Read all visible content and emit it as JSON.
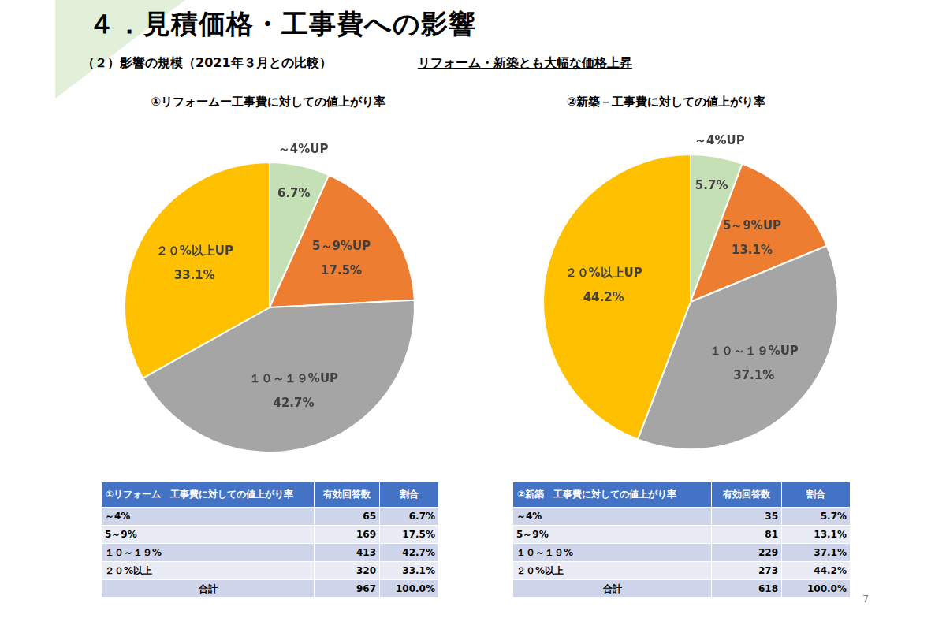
{
  "header": {
    "title": "４．見積価格・工事費への影響",
    "subtitle": "（２）影響の規模（2021年３月との比較）",
    "headline": "リフォーム・新築とも大幅な価格上昇"
  },
  "chart_data": [
    {
      "type": "pie",
      "title": "①リフォームー工事費に対しての値上がり率",
      "categories": [
        "～4%UP",
        "5～9%UP",
        "１０～１９%UP",
        "２０%以上UP"
      ],
      "values": [
        6.7,
        17.5,
        42.7,
        33.1
      ],
      "value_labels": [
        "6.7%",
        "17.5%",
        "42.7%",
        "33.1%"
      ],
      "colors": [
        "#C5E0B4",
        "#ED7D31",
        "#A5A5A5",
        "#FFC000"
      ],
      "data_labels": true
    },
    {
      "type": "pie",
      "title": "②新築－工事費に対しての値上がり率",
      "categories": [
        "～4%UP",
        "5～9%UP",
        "１０～１９%UP",
        "２０%以上UP"
      ],
      "values": [
        5.7,
        13.1,
        37.1,
        44.2
      ],
      "value_labels": [
        "5.7%",
        "13.1%",
        "37.1%",
        "44.2%"
      ],
      "colors": [
        "#C5E0B4",
        "#ED7D31",
        "#A5A5A5",
        "#FFC000"
      ],
      "data_labels": true
    }
  ],
  "tables": [
    {
      "columns": [
        "①リフォーム　工事費に対しての値上がり率",
        "有効回答数",
        "割合"
      ],
      "rows": [
        [
          "～4%",
          "65",
          "6.7%"
        ],
        [
          "5～9%",
          "169",
          "17.5%"
        ],
        [
          "１０～１９%",
          "413",
          "42.7%"
        ],
        [
          "２０%以上",
          "320",
          "33.1%"
        ]
      ],
      "total": [
        "合計",
        "967",
        "100.0%"
      ]
    },
    {
      "columns": [
        "②新築　工事費に対しての値上がり率",
        "有効回答数",
        "割合"
      ],
      "rows": [
        [
          "～4%",
          "35",
          "5.7%"
        ],
        [
          "5～9%",
          "81",
          "13.1%"
        ],
        [
          "１０～１９%",
          "229",
          "37.1%"
        ],
        [
          "２０%以上",
          "273",
          "44.2%"
        ]
      ],
      "total": [
        "合計",
        "618",
        "100.0%"
      ]
    }
  ],
  "page_number": "7"
}
